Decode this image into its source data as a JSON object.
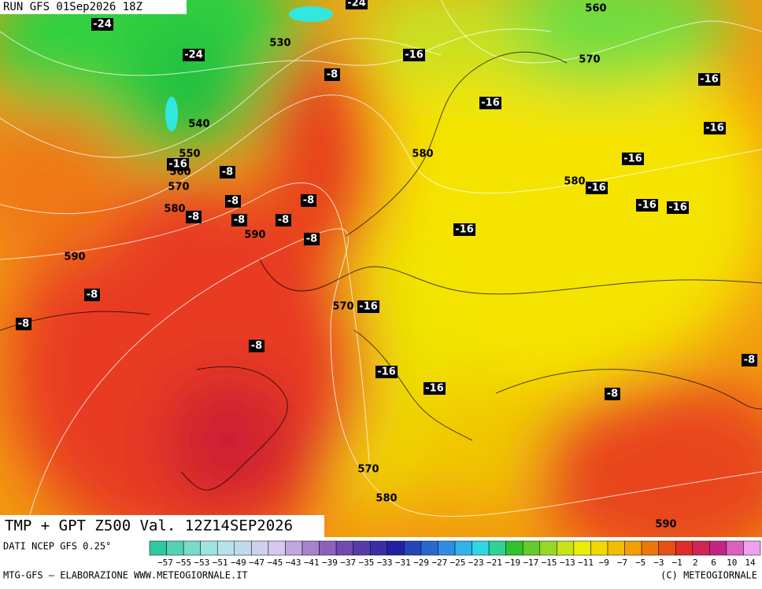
{
  "header": {
    "run": "RUN GFS 01Sep2026 18Z"
  },
  "title": "TMP + GPT Z500 Val. 12Z14SEP2026",
  "footer": {
    "source": "DATI NCEP GFS 0.25°",
    "credit": "MTG-GFS — ELABORAZIONE WWW.METEOGIORNALE.IT",
    "copyright": "(C) METEOGIORNALE"
  },
  "colorbar_labels": [
    "−57",
    "−55",
    "−53",
    "−51",
    "−49",
    "−47",
    "−45",
    "−43",
    "−41",
    "−39",
    "−37",
    "−35",
    "−33",
    "−31",
    "−29",
    "−27",
    "−25",
    "−23",
    "−21",
    "−19",
    "−17",
    "−15",
    "−13",
    "−11",
    "−9",
    "−7",
    "−5",
    "−3",
    "−1",
    "2",
    "6",
    "10",
    "14"
  ],
  "map_labels": [
    "-24",
    "-24",
    "560",
    "-24",
    "530",
    "-16",
    "570",
    "-8",
    "-16",
    "-16",
    "540",
    "-16",
    "580",
    "550",
    "-16",
    "560",
    "-8",
    "-16",
    "570",
    "580",
    "-16",
    "-8",
    "-8",
    "580",
    "-8",
    "-8",
    "-8",
    "-16",
    "-16",
    "-16",
    "590",
    "-8",
    "590",
    "-8",
    "570",
    "-16",
    "-8",
    "-8",
    "-8",
    "-16",
    "-16",
    "-8",
    "570",
    "580",
    "590"
  ]
}
